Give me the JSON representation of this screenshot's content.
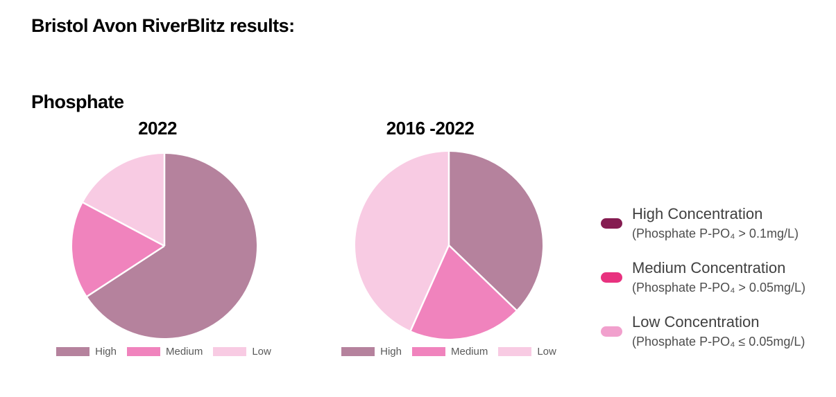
{
  "page": {
    "title": "Bristol Avon RiverBlitz results:",
    "section_label": "Phosphate"
  },
  "chart_data": [
    {
      "type": "pie",
      "title": "2022",
      "categories": [
        "High",
        "Medium",
        "Low"
      ],
      "values": [
        65.8,
        17.0,
        17.2
      ],
      "unit": "percent",
      "colors": [
        "#b5829d",
        "#f083bd",
        "#f8cbe3"
      ],
      "start_angle_deg": 0,
      "direction": "clockwise",
      "slice_separator_color": "#ffffff",
      "legend_position": "bottom"
    },
    {
      "type": "pie",
      "title": "2016 -2022",
      "categories": [
        "High",
        "Medium",
        "Low"
      ],
      "values": [
        37.2,
        19.5,
        43.3
      ],
      "unit": "percent",
      "colors": [
        "#b5829d",
        "#f083bd",
        "#f8cbe3"
      ],
      "start_angle_deg": 0,
      "direction": "clockwise",
      "slice_separator_color": "#ffffff",
      "legend_position": "bottom"
    }
  ],
  "side_legend": {
    "items": [
      {
        "title": "High Concentration",
        "subtitle": "(Phosphate P-PO₄ > 0.1mg/L)",
        "color": "#851c51"
      },
      {
        "title": "Medium Concentration",
        "subtitle": "(Phosphate P-PO₄ > 0.05mg/L)",
        "color": "#e8327f"
      },
      {
        "title": "Low Concentration",
        "subtitle": "(Phosphate P-PO₄ ≤ 0.05mg/L)",
        "color": "#f1a0cd"
      }
    ]
  },
  "text_colors": {
    "title": "#000000",
    "bottom_legend": "#595959",
    "side_legend": "#404040"
  }
}
